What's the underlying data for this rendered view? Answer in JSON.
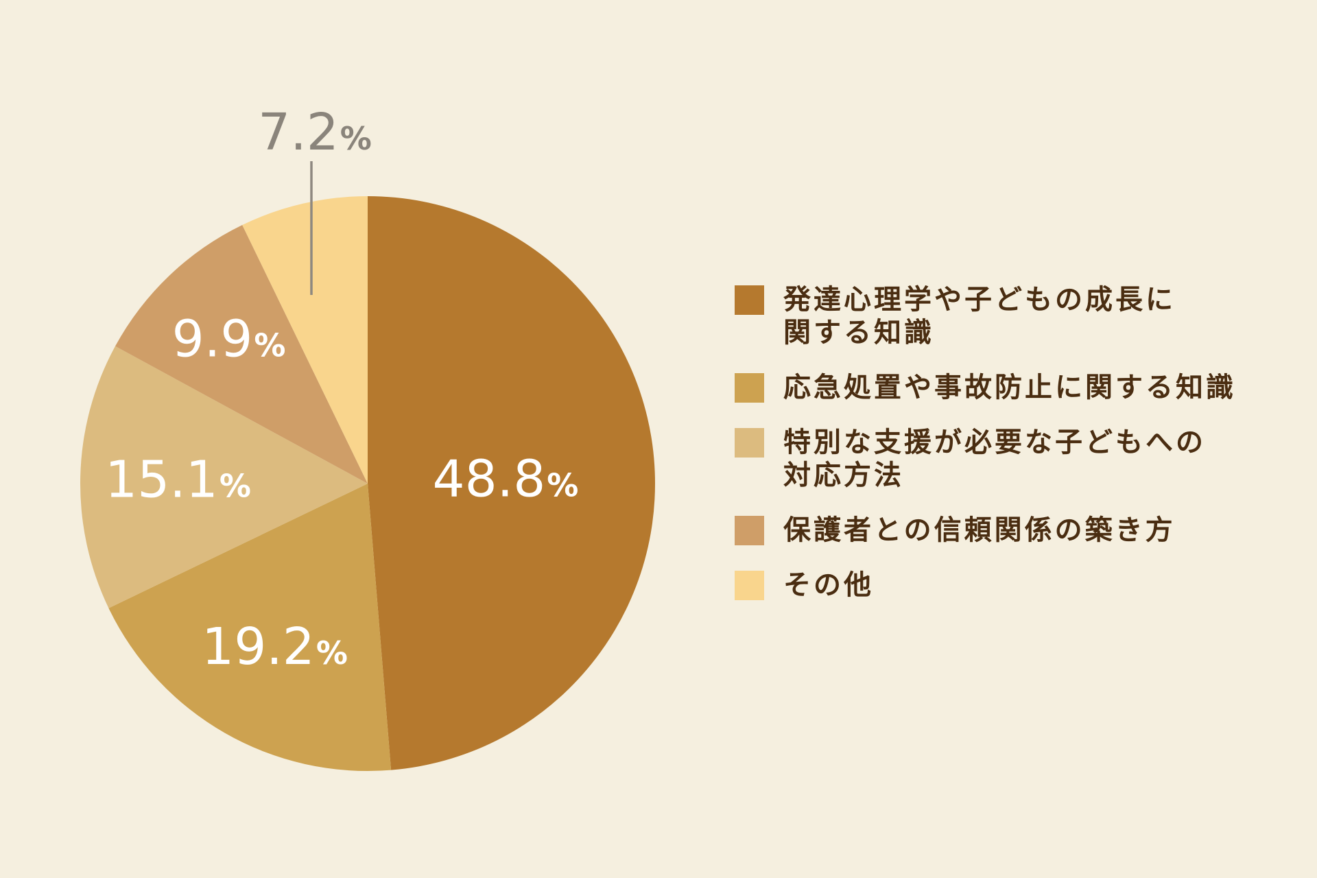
{
  "chart_data": {
    "type": "pie",
    "categories": [
      "発達心理学や子どもの成長に\n関する知識",
      "応急処置や事故防止に関する知識",
      "特別な支援が必要な子どもへの\n対応方法",
      "保護者との信頼関係の築き方",
      "その他"
    ],
    "values": [
      48.8,
      19.2,
      15.1,
      9.9,
      7.2
    ],
    "unit": "%",
    "colors": [
      "#B5792E",
      "#CDA250",
      "#DCBB7F",
      "#CF9E68",
      "#F9D58D"
    ],
    "legend": "right"
  }
}
